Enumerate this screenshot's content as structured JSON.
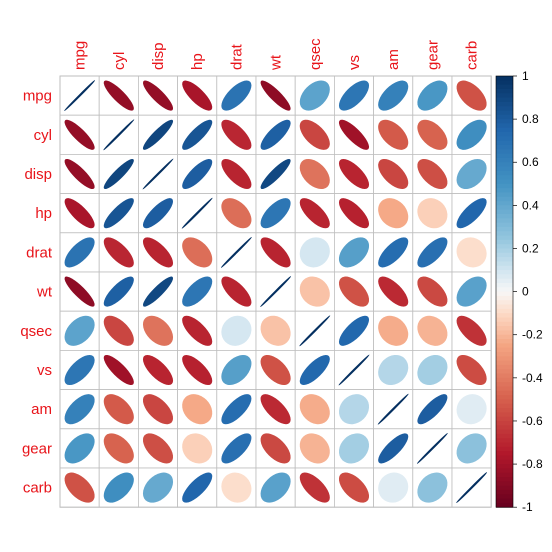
{
  "chart_data": {
    "type": "heatmap",
    "title": "",
    "method": "ellipse",
    "variables": [
      "mpg",
      "cyl",
      "disp",
      "hp",
      "drat",
      "wt",
      "qsec",
      "vs",
      "am",
      "gear",
      "carb"
    ],
    "matrix": [
      [
        1,
        -0.85,
        -0.85,
        -0.78,
        0.68,
        -0.87,
        0.42,
        0.66,
        0.6,
        0.48,
        -0.55
      ],
      [
        -0.85,
        1,
        0.9,
        0.83,
        -0.7,
        0.78,
        -0.59,
        -0.81,
        -0.52,
        -0.49,
        0.53
      ],
      [
        -0.85,
        0.9,
        1,
        0.79,
        -0.71,
        0.89,
        -0.43,
        -0.71,
        -0.59,
        -0.56,
        0.39
      ],
      [
        -0.78,
        0.83,
        0.79,
        1,
        -0.45,
        0.66,
        -0.71,
        -0.72,
        -0.24,
        -0.13,
        0.75
      ],
      [
        0.68,
        -0.7,
        -0.71,
        -0.45,
        1,
        -0.71,
        0.09,
        0.44,
        0.71,
        0.7,
        -0.09
      ],
      [
        -0.87,
        0.78,
        0.89,
        0.66,
        -0.71,
        1,
        -0.17,
        -0.55,
        -0.69,
        -0.58,
        0.43
      ],
      [
        0.42,
        -0.59,
        -0.43,
        -0.71,
        0.09,
        -0.17,
        1,
        0.74,
        -0.23,
        -0.21,
        -0.66
      ],
      [
        0.66,
        -0.81,
        -0.71,
        -0.72,
        0.44,
        -0.55,
        0.74,
        1,
        0.17,
        0.21,
        -0.57
      ],
      [
        0.6,
        -0.52,
        -0.59,
        -0.24,
        0.71,
        -0.69,
        -0.23,
        0.17,
        1,
        0.79,
        0.06
      ],
      [
        0.48,
        -0.49,
        -0.56,
        -0.13,
        0.7,
        -0.58,
        -0.21,
        0.21,
        0.79,
        1,
        0.27
      ],
      [
        -0.55,
        0.53,
        0.39,
        0.75,
        -0.09,
        0.43,
        -0.66,
        -0.57,
        0.06,
        0.27,
        1
      ]
    ],
    "colorbar": {
      "ticks": [
        "1",
        "0.8",
        "0.6",
        "0.4",
        "0.2",
        "0",
        "-0.2",
        "-0.4",
        "-0.6",
        "-0.8",
        "-1"
      ],
      "range": [
        -1,
        1
      ]
    },
    "colors": {
      "strong_negative": "#67001f",
      "negative": "#d6604d",
      "weak_negative": "#fddbc7",
      "neutral": "#f7f7f7",
      "weak_positive": "#d1e5f0",
      "positive": "#4393c3",
      "strong_positive": "#053061",
      "label": "#e8141a",
      "grid": "#bebebe"
    }
  }
}
